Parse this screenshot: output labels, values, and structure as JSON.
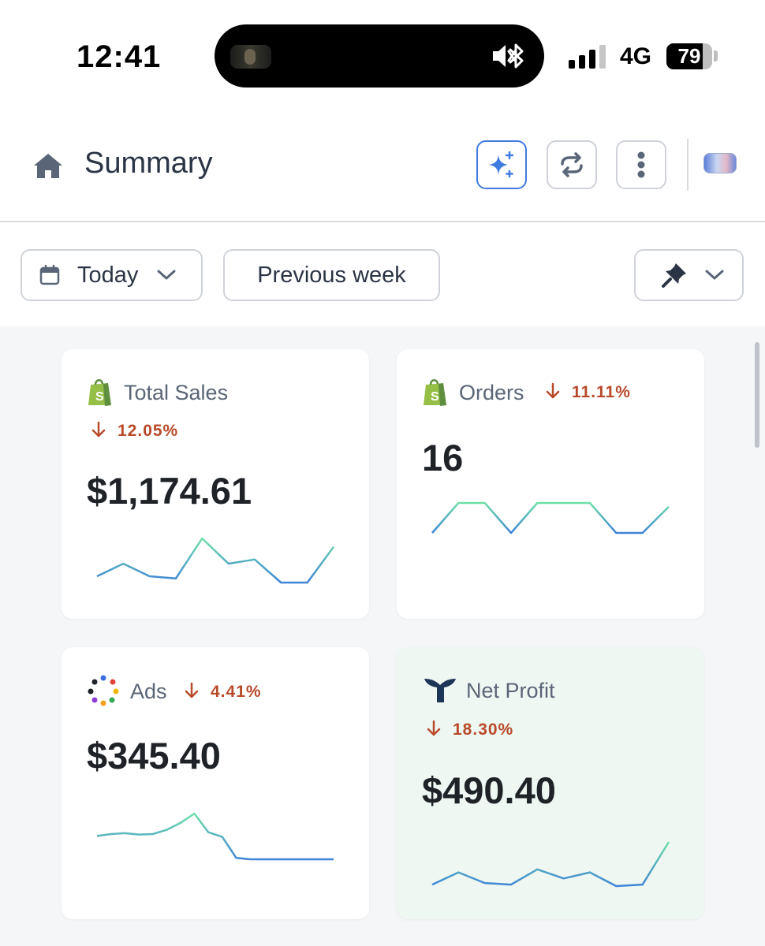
{
  "status_bar": {
    "time": "12:41",
    "network": "4G",
    "battery": "79"
  },
  "header": {
    "title": "Summary",
    "icons": [
      "home-icon",
      "sparkle-icon",
      "refresh-icon",
      "more-vertical-icon",
      "avatar"
    ]
  },
  "filters": {
    "date_range": "Today",
    "compare": "Previous week",
    "pin": "pin-icon"
  },
  "colors": {
    "accent": "#3f7be0",
    "negative": "#b84a2a",
    "spark_start": "#6fe0a8",
    "spark_end": "#3f84d6"
  },
  "cards": [
    {
      "title": "Total Sales",
      "change": "12.05%",
      "direction": "down",
      "value": "$1,174.61",
      "source_icon": "shopify-icon",
      "spark": [
        4,
        7,
        4,
        3.5,
        13,
        7,
        8,
        2.5,
        2.5,
        11
      ]
    },
    {
      "title": "Orders",
      "change": "11.11%",
      "direction": "down",
      "value": "16",
      "source_icon": "shopify-icon",
      "spark": [
        2,
        6,
        6,
        2,
        6,
        6,
        6,
        2,
        2,
        5.5
      ]
    },
    {
      "title": "Ads",
      "change": "4.41%",
      "direction": "down",
      "value": "$345.40",
      "source_icon": "ads-icon",
      "spark": [
        7.2,
        7.6,
        7.8,
        7.5,
        7.6,
        8.5,
        10,
        12,
        8,
        7,
        2.5,
        2.2,
        2.2,
        2.2,
        2.2,
        2.2,
        2.2,
        2.2
      ]
    },
    {
      "title": "Net Profit",
      "change": "18.30%",
      "direction": "down",
      "value": "$490.40",
      "source_icon": "triple-whale-icon",
      "spark": [
        4,
        8,
        4.5,
        4,
        9,
        6,
        8,
        3.5,
        4,
        18
      ]
    }
  ]
}
